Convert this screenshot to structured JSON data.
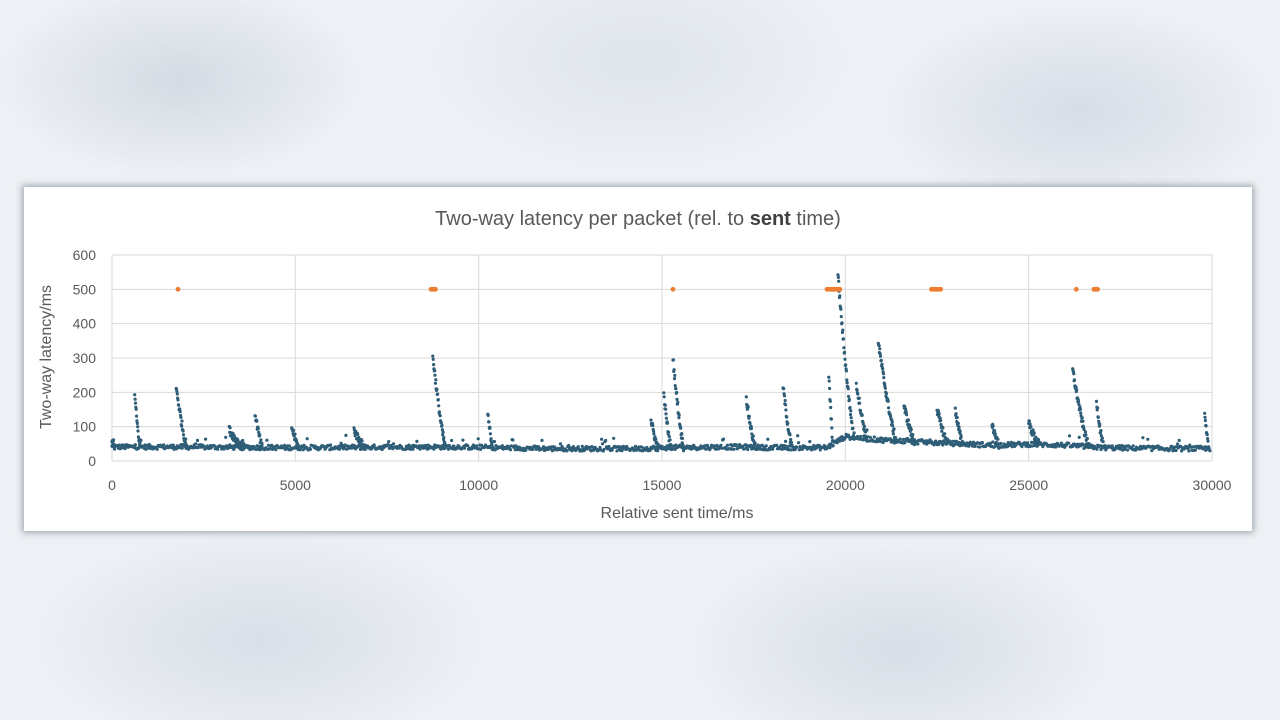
{
  "chart_data": {
    "type": "scatter",
    "title_parts": [
      {
        "text": "Two-way latency per packet (rel. to ",
        "bold": false
      },
      {
        "text": "sent",
        "bold": true
      },
      {
        "text": " time)",
        "bold": false
      }
    ],
    "xlabel": "Relative sent time/ms",
    "ylabel": "Two-way latency/ms",
    "xlim": [
      0,
      30000
    ],
    "ylim": [
      0,
      600
    ],
    "x_ticks": [
      0,
      5000,
      10000,
      15000,
      20000,
      25000,
      30000
    ],
    "y_ticks": [
      0,
      100,
      200,
      300,
      400,
      500,
      600
    ],
    "grid": true,
    "legend": "none",
    "series": [
      {
        "color": "#2e5d77",
        "baseline": [
          [
            0,
            40
          ],
          [
            2000,
            40
          ],
          [
            5000,
            38
          ],
          [
            8800,
            40
          ],
          [
            9500,
            40
          ],
          [
            12000,
            35
          ],
          [
            14500,
            35
          ],
          [
            15000,
            38
          ],
          [
            17000,
            40
          ],
          [
            18000,
            38
          ],
          [
            19500,
            38
          ],
          [
            20000,
            70
          ],
          [
            21000,
            60
          ],
          [
            22000,
            55
          ],
          [
            23000,
            50
          ],
          [
            24000,
            45
          ],
          [
            25000,
            48
          ],
          [
            26000,
            45
          ],
          [
            27000,
            38
          ],
          [
            29000,
            35
          ],
          [
            30000,
            35
          ]
        ],
        "spikes": [
          {
            "x": 0,
            "peak": 65,
            "width": 80
          },
          {
            "x": 620,
            "peak": 190,
            "width": 150
          },
          {
            "x": 1750,
            "peak": 215,
            "width": 300
          },
          {
            "x": 3200,
            "peak": 90,
            "width": 400
          },
          {
            "x": 3900,
            "peak": 140,
            "width": 200
          },
          {
            "x": 4900,
            "peak": 100,
            "width": 200
          },
          {
            "x": 6600,
            "peak": 90,
            "width": 300
          },
          {
            "x": 8750,
            "peak": 305,
            "width": 350
          },
          {
            "x": 10250,
            "peak": 130,
            "width": 150
          },
          {
            "x": 14700,
            "peak": 120,
            "width": 200
          },
          {
            "x": 15050,
            "peak": 190,
            "width": 200
          },
          {
            "x": 15300,
            "peak": 295,
            "width": 300
          },
          {
            "x": 17300,
            "peak": 180,
            "width": 250
          },
          {
            "x": 18300,
            "peak": 220,
            "width": 250
          },
          {
            "x": 19550,
            "peak": 250,
            "width": 120
          },
          {
            "x": 19800,
            "peak": 540,
            "width": 450
          },
          {
            "x": 20300,
            "peak": 225,
            "width": 300
          },
          {
            "x": 20900,
            "peak": 345,
            "width": 500
          },
          {
            "x": 21600,
            "peak": 160,
            "width": 300
          },
          {
            "x": 22500,
            "peak": 150,
            "width": 300
          },
          {
            "x": 23000,
            "peak": 150,
            "width": 200
          },
          {
            "x": 24000,
            "peak": 110,
            "width": 200
          },
          {
            "x": 25000,
            "peak": 110,
            "width": 300
          },
          {
            "x": 26200,
            "peak": 265,
            "width": 450
          },
          {
            "x": 26850,
            "peak": 175,
            "width": 200
          },
          {
            "x": 29800,
            "peak": 130,
            "width": 120
          }
        ]
      },
      {
        "color": "#ed7d31",
        "points": [
          [
            1800,
            500
          ],
          [
            8700,
            500
          ],
          [
            8760,
            500
          ],
          [
            8820,
            500
          ],
          [
            15300,
            500
          ],
          [
            19500,
            500
          ],
          [
            19550,
            500
          ],
          [
            19600,
            500
          ],
          [
            19650,
            500
          ],
          [
            19700,
            500
          ],
          [
            19750,
            500
          ],
          [
            19800,
            500
          ],
          [
            19850,
            500
          ],
          [
            22350,
            500
          ],
          [
            22400,
            500
          ],
          [
            22450,
            500
          ],
          [
            22500,
            500
          ],
          [
            22550,
            500
          ],
          [
            22600,
            500
          ],
          [
            26300,
            500
          ],
          [
            26780,
            500
          ],
          [
            26830,
            500
          ],
          [
            26880,
            500
          ]
        ]
      }
    ]
  }
}
